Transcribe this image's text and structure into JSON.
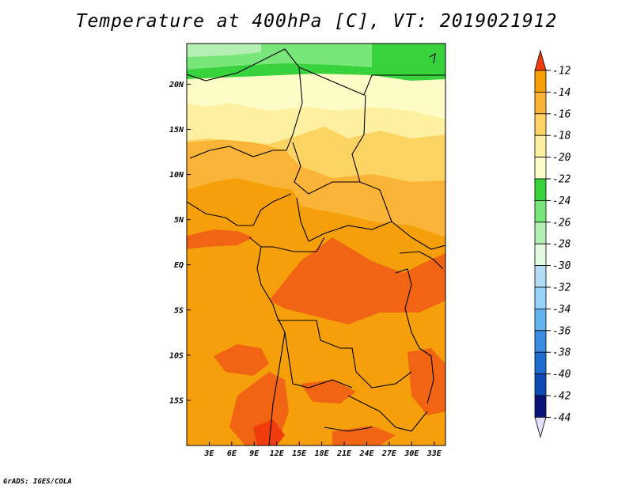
{
  "title": "Temperature at 400hPa [C], VT: 2019021912",
  "credit": "GrADS: IGES/COLA",
  "map": {
    "lon_range": [
      0,
      34.5
    ],
    "lat_range": [
      -20,
      24.5
    ],
    "lat_ticks": [
      {
        "value": 20,
        "label": "20N"
      },
      {
        "value": 15,
        "label": "15N"
      },
      {
        "value": 10,
        "label": "10N"
      },
      {
        "value": 5,
        "label": "5N"
      },
      {
        "value": 0,
        "label": "EQ"
      },
      {
        "value": -5,
        "label": "5S"
      },
      {
        "value": -10,
        "label": "10S"
      },
      {
        "value": -15,
        "label": "15S"
      }
    ],
    "lon_ticks": [
      {
        "value": 3,
        "label": "3E"
      },
      {
        "value": 6,
        "label": "6E"
      },
      {
        "value": 9,
        "label": "9E"
      },
      {
        "value": 12,
        "label": "12E"
      },
      {
        "value": 15,
        "label": "15E"
      },
      {
        "value": 18,
        "label": "18E"
      },
      {
        "value": 21,
        "label": "21E"
      },
      {
        "value": 24,
        "label": "24E"
      },
      {
        "value": 27,
        "label": "27E"
      },
      {
        "value": 30,
        "label": "30E"
      },
      {
        "value": 33,
        "label": "33E"
      }
    ]
  },
  "colorbar": {
    "levels": [
      {
        "label": "-12",
        "color": "#f06414"
      },
      {
        "label": "-14",
        "color": "#f5a00a"
      },
      {
        "label": "-16",
        "color": "#fab437"
      },
      {
        "label": "-18",
        "color": "#fcd463"
      },
      {
        "label": "-20",
        "color": "#fdf0a0"
      },
      {
        "label": "-22",
        "color": "#fefdc8"
      },
      {
        "label": "-24",
        "color": "#37d23c"
      },
      {
        "label": "-26",
        "color": "#78e678"
      },
      {
        "label": "-28",
        "color": "#b4f0b4"
      },
      {
        "label": "-30",
        "color": "#e1fae1"
      },
      {
        "label": "-32",
        "color": "#b4dcf5"
      },
      {
        "label": "-34",
        "color": "#96d2fa"
      },
      {
        "label": "-36",
        "color": "#64b4f0"
      },
      {
        "label": "-38",
        "color": "#3c8ce1"
      },
      {
        "label": "-40",
        "color": "#1e6ed2"
      },
      {
        "label": "-42",
        "color": "#0f4bb4"
      },
      {
        "label": "-44",
        "color": "#0a1478"
      }
    ],
    "top_arrow_color": "#f03c0a",
    "bottom_arrow_color": "#e1e1fa"
  }
}
